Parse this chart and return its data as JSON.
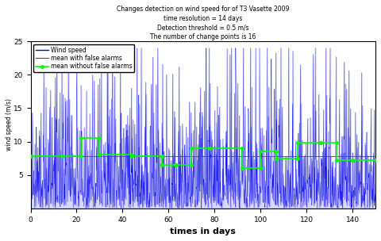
{
  "title_line1": "Changes detection on wind speed for of T3 Vasette 2009",
  "title_line2": "time resolution = 14 days",
  "title_line3": "Detection threshold = 0.5 m/s",
  "title_line4": "The number of change points is 16",
  "xlabel": "times in days",
  "ylabel": "wind speed (m/s)",
  "xlim": [
    0,
    150
  ],
  "ylim": [
    0,
    25
  ],
  "yticks": [
    5,
    10,
    15,
    20,
    25
  ],
  "xticks": [
    0,
    20,
    40,
    60,
    80,
    100,
    120,
    140
  ],
  "wind_color": "#0000EE",
  "mean_false_color": "#FF0000",
  "mean_nfalse_color": "#00FF00",
  "seed": 1234,
  "n_points": 1500,
  "change_points": [
    0,
    14,
    22,
    30,
    44,
    57,
    63,
    70,
    78,
    92,
    100,
    107,
    116,
    126,
    133,
    140,
    150
  ],
  "segment_means": [
    7.8,
    7.8,
    10.5,
    8.0,
    7.8,
    6.5,
    6.5,
    9.0,
    9.0,
    6.0,
    8.5,
    7.5,
    9.8,
    9.8,
    7.2,
    7.2
  ],
  "overall_mean": 7.8,
  "title_fontsize": 5.5,
  "axis_label_fontsize": 8,
  "tick_fontsize": 6.5,
  "legend_fontsize": 5.5,
  "background_color": "#FFFFFF",
  "figwidth": 4.8,
  "figheight": 3.04,
  "dpi": 100
}
